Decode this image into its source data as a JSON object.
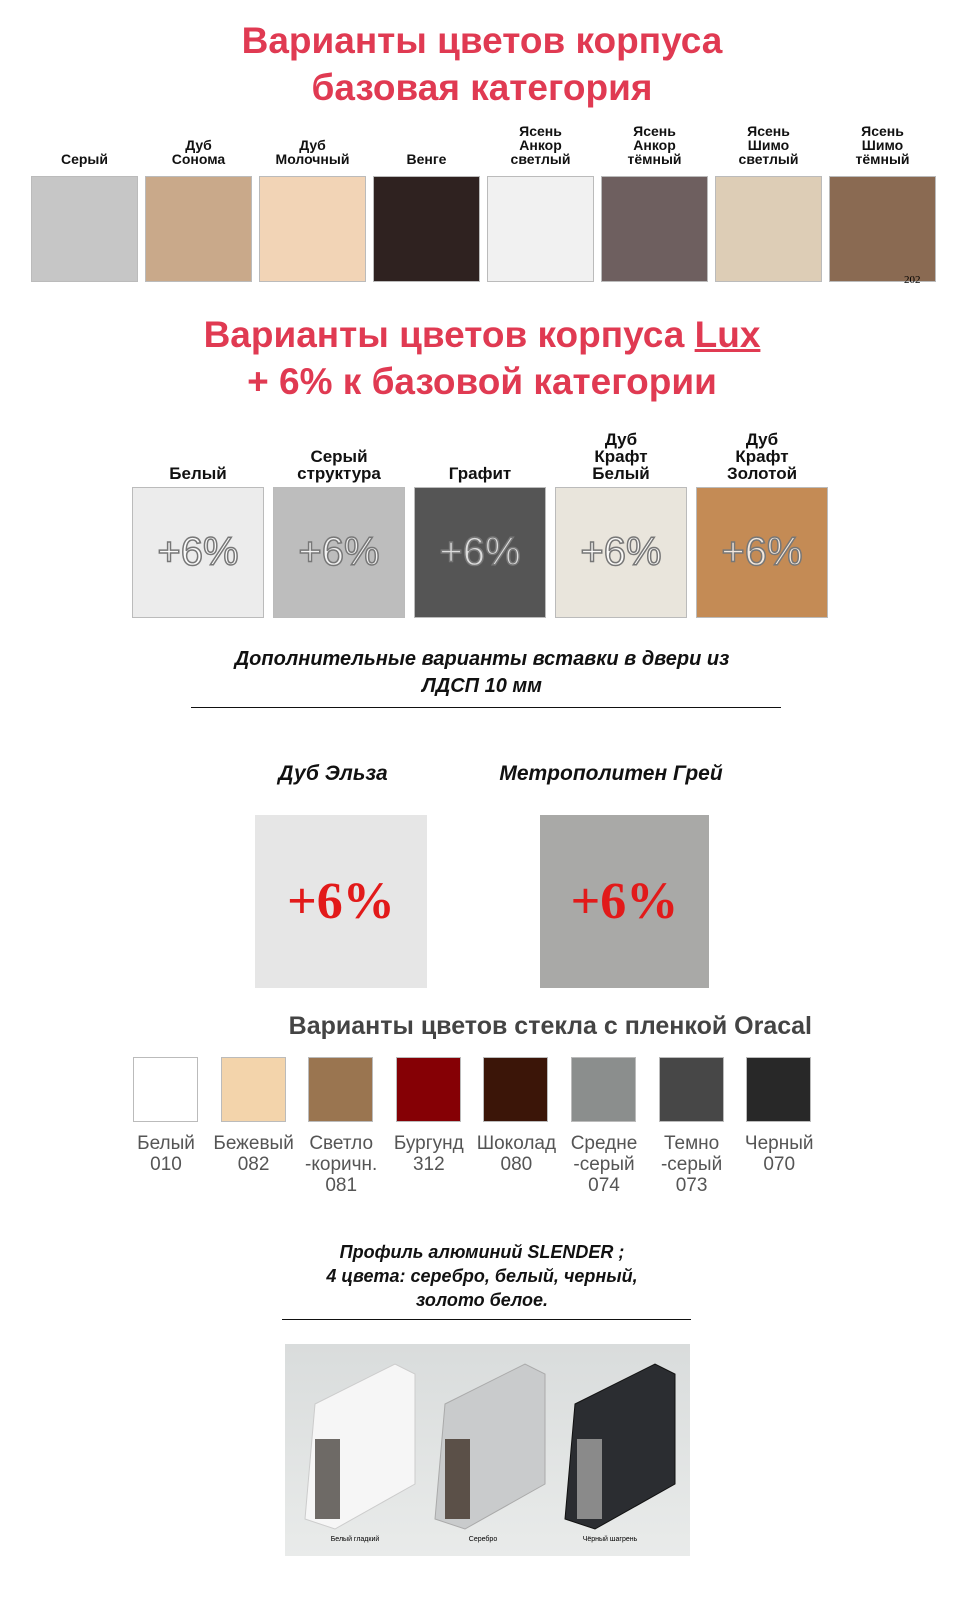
{
  "base": {
    "title1": "Варианты цветов корпуса",
    "title2": "базовая категория",
    "swatches": [
      {
        "label": "Серый",
        "color": "#c6c6c6"
      },
      {
        "label": "Дуб\nСонома",
        "color": "#c9a98a"
      },
      {
        "label": "Дуб\nМолочный",
        "color": "#f2d4b6"
      },
      {
        "label": "Венге",
        "color": "#2f2220"
      },
      {
        "label": "Ясень\nАнкор\nсветлый",
        "color": "#f1f1f1"
      },
      {
        "label": "Ясень\nАнкор\nтёмный",
        "color": "#6e5f5f"
      },
      {
        "label": "Ясень\nШимо\nсветлый",
        "color": "#ddcdb6"
      },
      {
        "label": "Ясень\nШимо\nтёмный",
        "color": "#8a6a52"
      }
    ],
    "corner_text": "202"
  },
  "lux": {
    "title1": "Варианты цветов корпуса ",
    "title_lux": "Lux",
    "title2": "+ 6% к базовой категории",
    "swatches": [
      {
        "label": "Белый",
        "color": "#ececec",
        "badge": "+6%"
      },
      {
        "label": "Серый\nструктура",
        "color": "#bdbdbd",
        "badge": "+6%"
      },
      {
        "label": "Графит",
        "color": "#555555",
        "badge": "+6%"
      },
      {
        "label": "Дуб\nКрафт\nБелый",
        "color": "#e9e5dc",
        "badge": "+6%"
      },
      {
        "label": "Дуб\nКрафт\nЗолотой",
        "color": "#c48b55",
        "badge": "+6%"
      }
    ]
  },
  "inserts": {
    "line1": "Дополнительные варианты вставки в двери из",
    "line2": "ЛДСП 10 мм",
    "items": [
      {
        "label": "Дуб Эльза",
        "color": "#e6e6e6",
        "badge": "+6%"
      },
      {
        "label": "Метрополитен Грей",
        "color": "#a9a9a7",
        "badge": "+6%"
      }
    ]
  },
  "oracal": {
    "title": "Варианты цветов стекла с пленкой Oracal",
    "swatches": [
      {
        "label": "Белый\n010",
        "color": "#ffffff"
      },
      {
        "label": "Бежевый\n082",
        "color": "#f3d4ab"
      },
      {
        "label": "Светло\n-коричн.\n081",
        "color": "#9a7550"
      },
      {
        "label": "Бургунд\n312",
        "color": "#850005"
      },
      {
        "label": "Шоколад\n080",
        "color": "#3b1508"
      },
      {
        "label": "Средне\n-серый\n074",
        "color": "#8b8e8d"
      },
      {
        "label": "Темно\n-серый\n073",
        "color": "#474747"
      },
      {
        "label": "Черный\n070",
        "color": "#282828"
      }
    ]
  },
  "profile": {
    "line1": "Профиль алюминий SLENDER ;",
    "line2": "4 цвета: серебро, белый, черный,",
    "line3": "золото белое.",
    "captions": [
      "Белый гладкий",
      "Серебро",
      "Чёрный шагрень"
    ]
  }
}
